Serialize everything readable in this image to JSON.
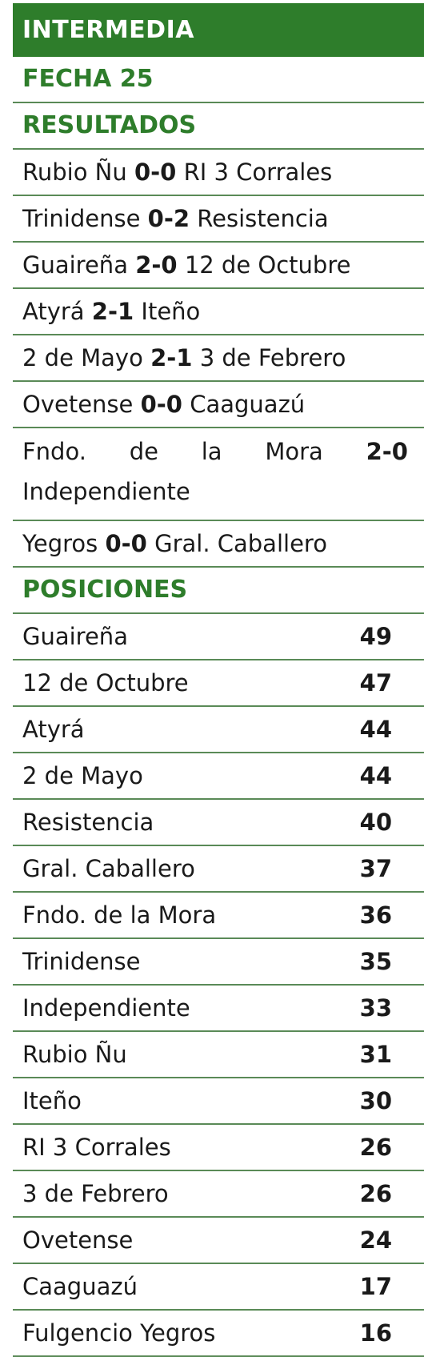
{
  "header": {
    "title": "INTERMEDIA",
    "fecha": "FECHA 25"
  },
  "results_heading": "RESULTADOS",
  "results": [
    {
      "home": "Rubio Ñu",
      "score": "0-0",
      "away": "RI 3 Corrales"
    },
    {
      "home": "Trinidense",
      "score": "0-2",
      "away": "Resistencia"
    },
    {
      "home": "Guaireña",
      "score": "2-0",
      "away": "12 de Octubre"
    },
    {
      "home": "Atyrá",
      "score": "2-1",
      "away": "Iteño"
    },
    {
      "home": "2 de Mayo",
      "score": "2-1",
      "away": "3 de Febrero"
    },
    {
      "home": "Ovetense",
      "score": "0-0",
      "away": "Caaguazú"
    },
    {
      "home_words": [
        "Fndo.",
        "de",
        "la",
        "Mora"
      ],
      "score": "2-0",
      "away": "Independiente"
    },
    {
      "home": "Yegros",
      "score": "0-0",
      "away": "Gral. Caballero"
    }
  ],
  "standings_heading": "POSICIONES",
  "standings": [
    {
      "team": "Guaireña",
      "pts": "49"
    },
    {
      "team": "12 de Octubre",
      "pts": "47"
    },
    {
      "team": "Atyrá",
      "pts": "44"
    },
    {
      "team": "2 de Mayo",
      "pts": "44"
    },
    {
      "team": "Resistencia",
      "pts": "40"
    },
    {
      "team": "Gral. Caballero",
      "pts": "37"
    },
    {
      "team": "Fndo. de la Mora",
      "pts": "36"
    },
    {
      "team": "Trinidense",
      "pts": "35"
    },
    {
      "team": "Independiente",
      "pts": "33"
    },
    {
      "team": "Rubio Ñu",
      "pts": "31"
    },
    {
      "team": "Iteño",
      "pts": "30"
    },
    {
      "team": "RI 3 Corrales",
      "pts": "26"
    },
    {
      "team": "3 de Febrero",
      "pts": "26"
    },
    {
      "team": "Ovetense",
      "pts": "24"
    },
    {
      "team": "Caaguazú",
      "pts": "17"
    },
    {
      "team": "Fulgencio Yegros",
      "pts": "16"
    }
  ],
  "colors": {
    "green": "#2e7d2b",
    "rule": "#5a8a57"
  }
}
